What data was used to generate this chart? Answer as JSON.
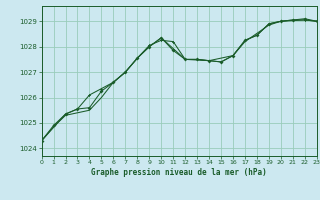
{
  "title": "Graphe pression niveau de la mer (hPa)",
  "bg_color": "#cce8f0",
  "grid_color": "#99ccbb",
  "line_color": "#1a5c2a",
  "xlim": [
    0,
    23
  ],
  "ylim": [
    1023.7,
    1029.6
  ],
  "yticks": [
    1024,
    1025,
    1026,
    1027,
    1028,
    1029
  ],
  "xticks": [
    0,
    1,
    2,
    3,
    4,
    5,
    6,
    7,
    8,
    9,
    10,
    11,
    12,
    13,
    14,
    15,
    16,
    17,
    18,
    19,
    20,
    21,
    22,
    23
  ],
  "series1": [
    [
      0,
      1024.3
    ],
    [
      1,
      1024.9
    ],
    [
      2,
      1025.35
    ],
    [
      3,
      1025.55
    ],
    [
      4,
      1025.6
    ],
    [
      5,
      1026.25
    ],
    [
      6,
      1026.6
    ],
    [
      7,
      1027.0
    ],
    [
      8,
      1027.55
    ],
    [
      9,
      1028.0
    ],
    [
      10,
      1028.35
    ],
    [
      11,
      1027.85
    ],
    [
      12,
      1027.5
    ],
    [
      13,
      1027.5
    ],
    [
      14,
      1027.45
    ],
    [
      15,
      1027.4
    ],
    [
      16,
      1027.65
    ],
    [
      17,
      1028.25
    ],
    [
      18,
      1028.45
    ],
    [
      19,
      1028.9
    ],
    [
      20,
      1029.0
    ],
    [
      21,
      1029.05
    ],
    [
      22,
      1029.1
    ],
    [
      23,
      1029.0
    ]
  ],
  "series2": [
    [
      0,
      1024.3
    ],
    [
      2,
      1025.35
    ],
    [
      3,
      1025.55
    ],
    [
      4,
      1026.1
    ],
    [
      5,
      1026.35
    ],
    [
      6,
      1026.6
    ],
    [
      7,
      1027.0
    ],
    [
      8,
      1027.55
    ],
    [
      9,
      1028.05
    ],
    [
      10,
      1028.25
    ],
    [
      11,
      1028.2
    ],
    [
      12,
      1027.5
    ],
    [
      13,
      1027.5
    ],
    [
      14,
      1027.45
    ],
    [
      15,
      1027.4
    ],
    [
      16,
      1027.65
    ],
    [
      17,
      1028.25
    ],
    [
      18,
      1028.45
    ],
    [
      19,
      1028.9
    ],
    [
      20,
      1029.0
    ],
    [
      21,
      1029.05
    ],
    [
      22,
      1029.05
    ],
    [
      23,
      1029.0
    ]
  ],
  "series3": [
    [
      0,
      1024.3
    ],
    [
      1,
      1024.85
    ],
    [
      2,
      1025.3
    ],
    [
      3,
      1025.4
    ],
    [
      4,
      1025.5
    ],
    [
      5,
      1026.0
    ],
    [
      6,
      1026.6
    ],
    [
      7,
      1027.0
    ],
    [
      8,
      1027.55
    ],
    [
      9,
      1028.0
    ],
    [
      10,
      1028.35
    ],
    [
      12,
      1027.5
    ],
    [
      14,
      1027.45
    ],
    [
      16,
      1027.65
    ],
    [
      17,
      1028.2
    ],
    [
      19,
      1028.85
    ],
    [
      20,
      1029.0
    ],
    [
      22,
      1029.05
    ],
    [
      23,
      1029.0
    ]
  ]
}
